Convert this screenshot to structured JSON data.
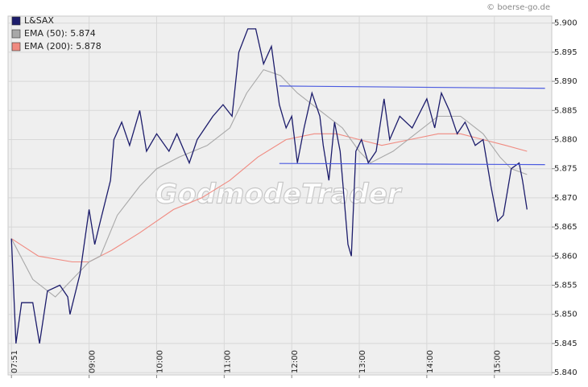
{
  "chart_data": {
    "type": "line",
    "source": "© boerse-go.de",
    "watermark": "GodmodeTrader",
    "xlim": [
      "07:48",
      "15:51"
    ],
    "xticks": [
      "07:51",
      "09:00",
      "10:00",
      "11:00",
      "12:00",
      "13:00",
      "14:00",
      "15:00"
    ],
    "ylim": [
      5.8396,
      5.9012
    ],
    "yticks": [
      {
        "value": 5.84,
        "label": "5.840"
      },
      {
        "value": 5.845,
        "label": "5.845"
      },
      {
        "value": 5.85,
        "label": "5.850"
      },
      {
        "value": 5.855,
        "label": "5.855"
      },
      {
        "value": 5.86,
        "label": "5.860"
      },
      {
        "value": 5.865,
        "label": "5.865"
      },
      {
        "value": 5.87,
        "label": "5.870"
      },
      {
        "value": 5.875,
        "label": "5.875"
      },
      {
        "value": 5.88,
        "label": "5.880"
      },
      {
        "value": 5.885,
        "label": "5.885"
      },
      {
        "value": 5.89,
        "label": "5.890"
      },
      {
        "value": 5.895,
        "label": "5.895"
      },
      {
        "value": 5.9,
        "label": "5.900"
      }
    ],
    "grid": true,
    "legend": "top-left",
    "series": [
      {
        "name": "L&SAX",
        "color": "#1c1c6b",
        "x": [
          "07:51",
          "07:55",
          "08:00",
          "08:10",
          "08:16",
          "08:23",
          "08:34",
          "08:41",
          "08:43",
          "08:52",
          "09:00",
          "09:05",
          "09:10",
          "09:19",
          "09:22",
          "09:29",
          "09:36",
          "09:45",
          "09:51",
          "10:00",
          "10:11",
          "10:18",
          "10:29",
          "10:36",
          "10:50",
          "10:59",
          "11:07",
          "11:13",
          "11:21",
          "11:28",
          "11:35",
          "11:42",
          "11:49",
          "11:55",
          "12:00",
          "12:05",
          "12:11",
          "12:18",
          "12:25",
          "12:28",
          "12:33",
          "12:38",
          "12:43",
          "12:50",
          "12:53",
          "12:57",
          "13:02",
          "13:08",
          "13:15",
          "13:22",
          "13:27",
          "13:36",
          "13:47",
          "14:00",
          "14:07",
          "14:13",
          "14:20",
          "14:27",
          "14:34",
          "14:43",
          "14:50",
          "14:57",
          "15:03",
          "15:08",
          "15:15",
          "15:22",
          "15:25",
          "15:29"
        ],
        "values": [
          5.863,
          5.845,
          5.852,
          5.852,
          5.845,
          5.854,
          5.855,
          5.853,
          5.85,
          5.857,
          5.868,
          5.862,
          5.866,
          5.873,
          5.88,
          5.883,
          5.879,
          5.885,
          5.878,
          5.881,
          5.878,
          5.881,
          5.876,
          5.88,
          5.884,
          5.886,
          5.884,
          5.895,
          5.899,
          5.899,
          5.893,
          5.896,
          5.886,
          5.882,
          5.884,
          5.876,
          5.882,
          5.888,
          5.884,
          5.879,
          5.873,
          5.883,
          5.878,
          5.862,
          5.86,
          5.878,
          5.88,
          5.876,
          5.878,
          5.887,
          5.88,
          5.884,
          5.882,
          5.887,
          5.882,
          5.888,
          5.885,
          5.881,
          5.883,
          5.879,
          5.88,
          5.872,
          5.866,
          5.867,
          5.875,
          5.876,
          5.873,
          5.868
        ]
      },
      {
        "name": "EMA (50): 5.874",
        "color": "#a8a8a8",
        "x": [
          "07:51",
          "08:10",
          "08:30",
          "08:45",
          "09:00",
          "09:10",
          "09:25",
          "09:45",
          "10:00",
          "10:20",
          "10:45",
          "11:05",
          "11:20",
          "11:35",
          "11:50",
          "12:05",
          "12:25",
          "12:45",
          "13:00",
          "13:10",
          "13:30",
          "13:50",
          "14:10",
          "14:30",
          "14:50",
          "15:05",
          "15:15",
          "15:29"
        ],
        "values": [
          5.863,
          5.856,
          5.853,
          5.856,
          5.859,
          5.86,
          5.867,
          5.872,
          5.875,
          5.877,
          5.879,
          5.882,
          5.888,
          5.892,
          5.891,
          5.888,
          5.885,
          5.882,
          5.878,
          5.876,
          5.878,
          5.881,
          5.884,
          5.884,
          5.881,
          5.877,
          5.875,
          5.874
        ]
      },
      {
        "name": "EMA (200): 5.878",
        "color": "#f08a80",
        "x": [
          "07:51",
          "08:15",
          "08:45",
          "09:00",
          "09:20",
          "09:45",
          "10:15",
          "10:40",
          "11:05",
          "11:30",
          "11:55",
          "12:20",
          "12:40",
          "13:00",
          "13:20",
          "13:45",
          "14:10",
          "14:30",
          "14:50",
          "15:10",
          "15:29"
        ],
        "values": [
          5.863,
          5.86,
          5.859,
          5.859,
          5.861,
          5.864,
          5.868,
          5.87,
          5.873,
          5.877,
          5.88,
          5.881,
          5.881,
          5.88,
          5.879,
          5.88,
          5.881,
          5.881,
          5.88,
          5.879,
          5.878
        ]
      }
    ],
    "trend_lines": [
      {
        "color": "#4a5ae0",
        "x": [
          "11:49",
          "15:45"
        ],
        "values": [
          5.8892,
          5.8888
        ]
      },
      {
        "color": "#4a5ae0",
        "x": [
          "11:49",
          "15:45"
        ],
        "values": [
          5.8759,
          5.8757
        ]
      }
    ]
  }
}
